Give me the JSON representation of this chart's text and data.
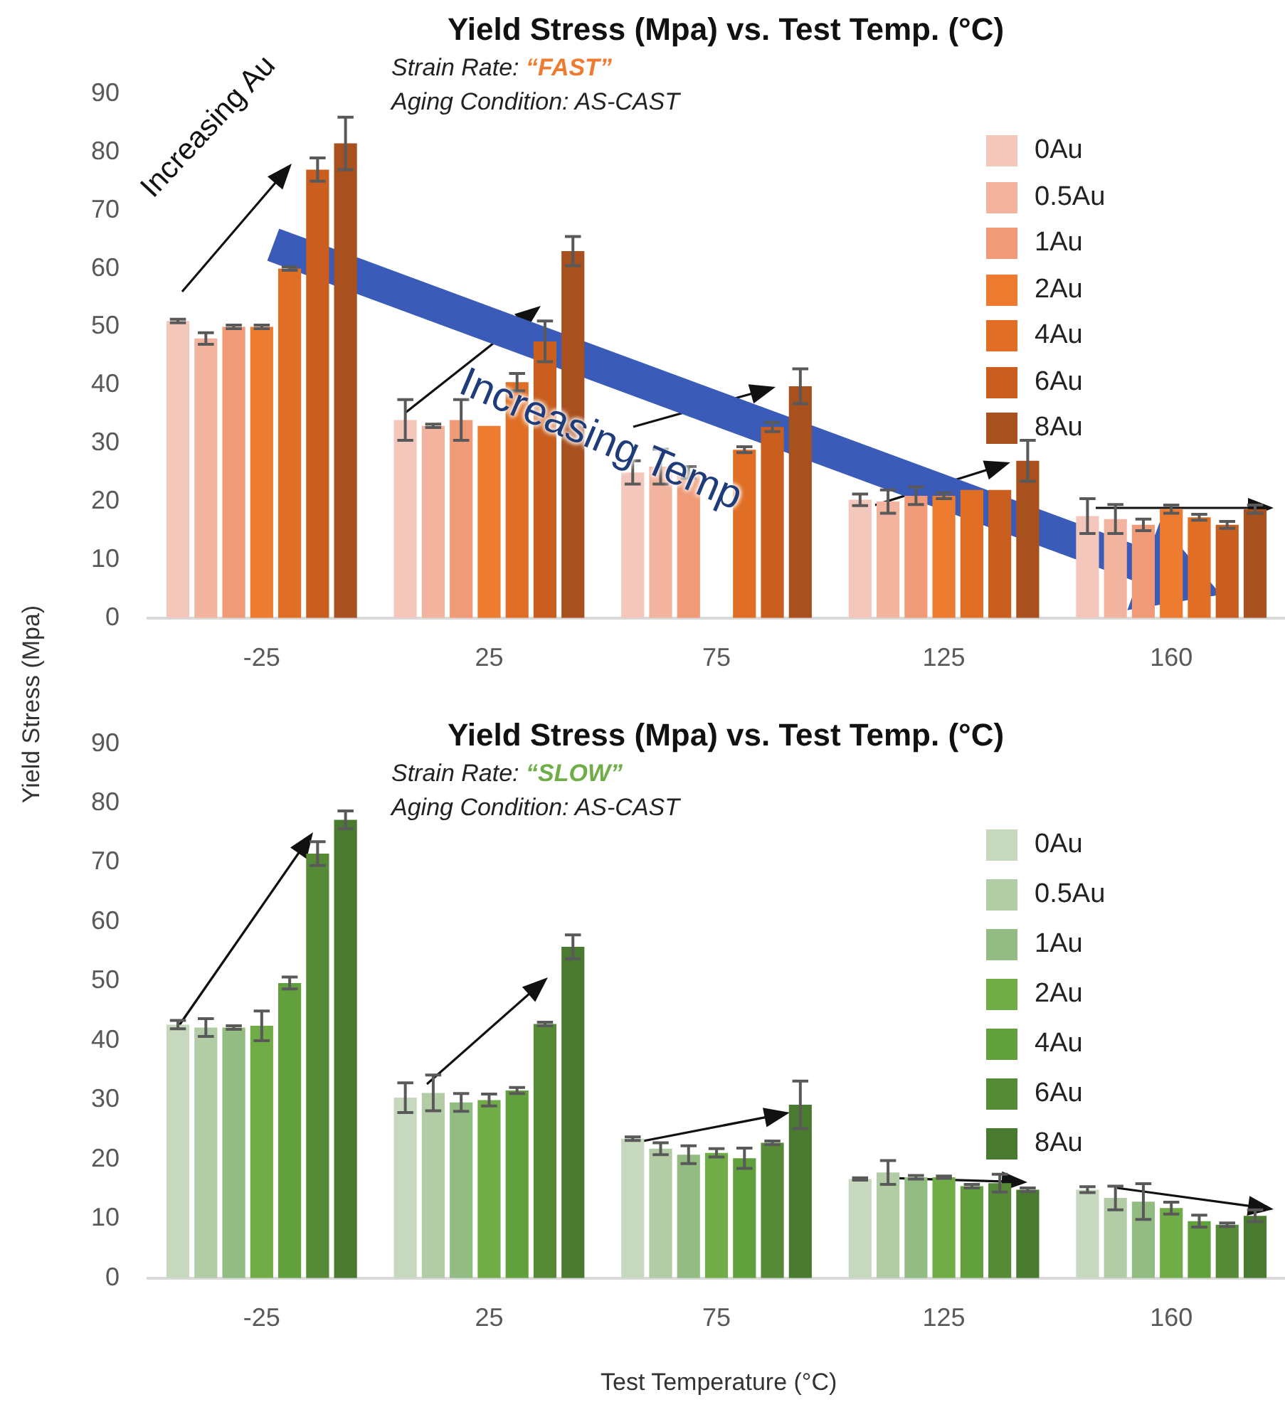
{
  "chart_data": [
    {
      "type": "bar",
      "title": "Yield Stress (Mpa) vs. Test Temp. (°C)",
      "subtitle": "Strain Rate: “FAST”\nAging Condition: AS-CAST",
      "ylabel": "Yield Stress (Mpa)",
      "categories": [
        "-25",
        "25",
        "75",
        "125",
        "160"
      ],
      "series": [
        {
          "name": "0Au",
          "color": "#f4c7bd",
          "values": [
            51,
            34,
            25,
            20.3,
            17.5
          ],
          "errors": [
            0.3,
            3.5,
            2,
            1,
            3
          ]
        },
        {
          "name": "0.5Au",
          "color": "#f2b49e",
          "values": [
            48,
            33,
            26,
            20,
            17
          ],
          "errors": [
            1,
            0.3,
            3,
            2,
            2.5
          ]
        },
        {
          "name": "1Au",
          "color": "#f09a78",
          "values": [
            50,
            34,
            25,
            21,
            16
          ],
          "errors": [
            0.3,
            3.5,
            1,
            1.5,
            1
          ]
        },
        {
          "name": "2Au",
          "color": "#ee7c30",
          "values": [
            50,
            33,
            null,
            21,
            18.7
          ],
          "errors": [
            0.3,
            null,
            null,
            0.5,
            0.7
          ]
        },
        {
          "name": "4Au",
          "color": "#e06f25",
          "values": [
            60,
            40.5,
            28.9,
            22,
            17.3
          ],
          "errors": [
            0.3,
            1.5,
            0.5,
            null,
            0.5
          ]
        },
        {
          "name": "6Au",
          "color": "#c95e1e",
          "values": [
            77,
            47.5,
            32.8,
            22,
            16
          ],
          "errors": [
            2,
            3.5,
            0.8,
            null,
            0.6
          ]
        },
        {
          "name": "8Au",
          "color": "#a9501f",
          "values": [
            81.5,
            63,
            39.8,
            27,
            18.7
          ],
          "errors": [
            4.5,
            2.5,
            3,
            3.5,
            0.7
          ]
        }
      ],
      "ylim": [
        0,
        90
      ],
      "yticks": [
        0,
        10,
        20,
        30,
        40,
        50,
        60,
        70,
        80,
        90
      ],
      "grid": false,
      "legend": "top right",
      "annotations": [
        "Increasing Au",
        "Increasing Temp"
      ]
    },
    {
      "type": "bar",
      "title": "Yield Stress (Mpa) vs. Test Temp. (°C)",
      "subtitle": "Strain Rate: “SLOW”\nAging Condition: AS-CAST",
      "xlabel": "Test Temperature (°C)",
      "categories": [
        "-25",
        "25",
        "75",
        "125",
        "160"
      ],
      "series": [
        {
          "name": "0Au",
          "color": "#c6d9be",
          "values": [
            42.7,
            30.4,
            23.5,
            16.7,
            14.9
          ],
          "errors": [
            0.7,
            2.5,
            0.3,
            0.2,
            0.5
          ]
        },
        {
          "name": "0.5Au",
          "color": "#b2cca6",
          "values": [
            42.2,
            31.2,
            21.8,
            17.8,
            13.5
          ],
          "errors": [
            1.5,
            3,
            1,
            2,
            2
          ]
        },
        {
          "name": "1Au",
          "color": "#93bc83",
          "values": [
            42.2,
            29.6,
            20.8,
            17,
            12.9
          ],
          "errors": [
            0.3,
            1.5,
            1.5,
            0.3,
            3
          ]
        },
        {
          "name": "2Au",
          "color": "#70ad47",
          "values": [
            42.5,
            30,
            21.1,
            17,
            11.8
          ],
          "errors": [
            2.5,
            1,
            0.7,
            0.2,
            1
          ]
        },
        {
          "name": "4Au",
          "color": "#62a03d",
          "values": [
            49.7,
            31.6,
            20.2,
            15.5,
            9.6
          ],
          "errors": [
            1,
            0.5,
            1.7,
            0.3,
            1
          ]
        },
        {
          "name": "6Au",
          "color": "#568a36",
          "values": [
            71.5,
            42.8,
            22.8,
            16,
            9
          ],
          "errors": [
            2,
            0.3,
            0.3,
            1.5,
            0.3
          ]
        },
        {
          "name": "8Au",
          "color": "#4a7a2f",
          "values": [
            77.2,
            55.8,
            29.2,
            14.9,
            10.5
          ],
          "errors": [
            1.5,
            2,
            4,
            0.3,
            1
          ]
        }
      ],
      "ylim": [
        0,
        90
      ],
      "yticks": [
        0,
        10,
        20,
        30,
        40,
        50,
        60,
        70,
        80,
        90
      ],
      "grid": false,
      "legend": "right"
    }
  ]
}
